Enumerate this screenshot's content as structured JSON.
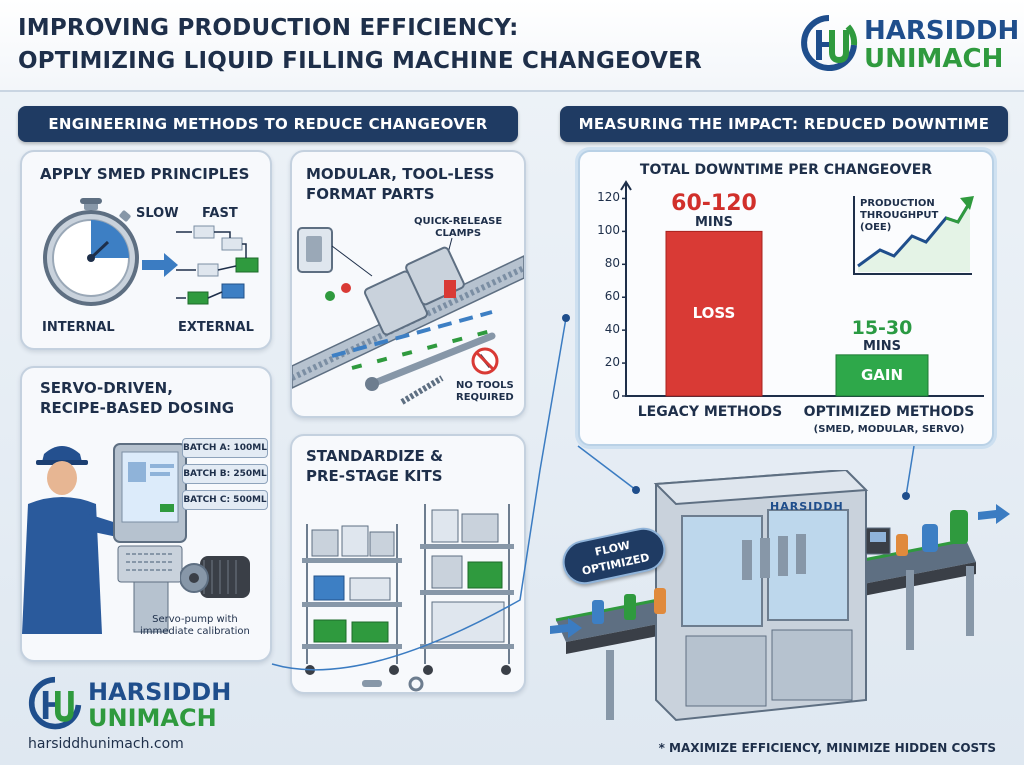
{
  "header": {
    "title_line1": "IMPROVING PRODUCTION EFFICIENCY:",
    "title_line2": "OPTIMIZING LIQUID FILLING MACHINE CHANGEOVER"
  },
  "brand": {
    "name_line1": "HARSIDDH",
    "name_line2": "UNIMACH",
    "website": "harsiddhunimach.com",
    "machine_label": "HARSIDDH"
  },
  "sections": {
    "methods_banner": "ENGINEERING METHODS TO REDUCE CHANGEOVER",
    "impact_banner": "MEASURING THE IMPACT: REDUCED DOWNTIME"
  },
  "smed": {
    "title": "APPLY SMED PRINCIPLES",
    "slow": "SLOW",
    "fast": "FAST",
    "internal": "INTERNAL",
    "external": "EXTERNAL"
  },
  "modular": {
    "title_line1": "MODULAR, TOOL-LESS",
    "title_line2": "FORMAT PARTS",
    "clamps_line1": "QUICK-RELEASE",
    "clamps_line2": "CLAMPS",
    "no_tools_line1": "NO TOOLS",
    "no_tools_line2": "REQUIRED"
  },
  "servo": {
    "title_line1": "SERVO-DRIVEN,",
    "title_line2": "RECIPE-BASED DOSING",
    "batches": [
      "BATCH A: 100ML",
      "BATCH B: 250ML",
      "BATCH C: 500ML"
    ],
    "pump_line1": "Servo-pump with",
    "pump_line2": "immediate calibration"
  },
  "kits": {
    "title_line1": "STANDARDIZE &",
    "title_line2": "PRE-STAGE KITS"
  },
  "chart_data": {
    "type": "bar",
    "title": "TOTAL DOWNTIME PER CHANGEOVER",
    "categories": [
      "LEGACY METHODS",
      "OPTIMIZED METHODS"
    ],
    "category_subtitles": [
      "",
      "(SMED, MODULAR, SERVO)"
    ],
    "values": [
      100,
      25
    ],
    "value_labels": [
      "60-120",
      "15-30"
    ],
    "unit_label": "MINS",
    "bar_labels": [
      "LOSS",
      "GAIN"
    ],
    "bar_colors": [
      "#d93a35",
      "#2ea84a"
    ],
    "value_label_colors": [
      "#d1302b",
      "#2a9a43"
    ],
    "yticks": [
      0,
      20,
      40,
      60,
      80,
      100,
      120
    ],
    "ylim": [
      0,
      130
    ],
    "grid": false,
    "inset": {
      "type": "line",
      "label_line1": "PRODUCTION",
      "label_line2": "THROUGHPUT",
      "label_line3": "(OEE)",
      "trend": "rising"
    }
  },
  "badges": {
    "flow_line1": "FLOW",
    "flow_line2": "OPTIMIZED"
  },
  "footer": {
    "note": "* MAXIMIZE EFFICIENCY, MINIMIZE HIDDEN COSTS"
  },
  "colors": {
    "navy": "#1f3b63",
    "brand_blue": "#1f4e8c",
    "brand_green": "#2f9a3e",
    "loss_red": "#d93a35",
    "gain_green": "#2ea84a"
  }
}
